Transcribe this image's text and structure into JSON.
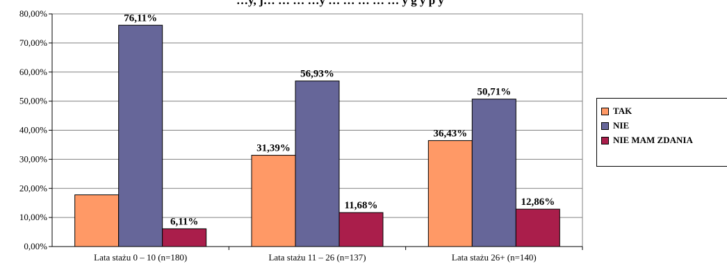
{
  "chart_data": {
    "type": "bar",
    "title": "…y, j… … … …y … … … … … y g y p y",
    "categories": [
      "Lata stażu 0 – 10 (n=180)",
      "Lata stażu 11 – 26 (n=137)",
      "Lata stażu 26+ (n=140)"
    ],
    "series": [
      {
        "name": "TAK",
        "color": "#FF9966",
        "values": [
          17.78,
          31.39,
          36.43
        ],
        "labels": [
          "",
          "31,39%",
          "36,43%"
        ]
      },
      {
        "name": "NIE",
        "color": "#666699",
        "values": [
          76.11,
          56.93,
          50.71
        ],
        "labels": [
          "76,11%",
          "56,93%",
          "50,71%"
        ]
      },
      {
        "name": "NIE MAM ZDANIA",
        "color": "#AA1E4B",
        "values": [
          6.11,
          11.68,
          12.86
        ],
        "labels": [
          "6,11%",
          "11,68%",
          "12,86%"
        ]
      }
    ],
    "yticks": [
      "0,00%",
      "10,00%",
      "20,00%",
      "30,00%",
      "40,00%",
      "50,00%",
      "60,00%",
      "70,00%",
      "80,00%"
    ],
    "ylim": [
      0,
      80
    ],
    "grid": true,
    "legend_position": "right"
  }
}
